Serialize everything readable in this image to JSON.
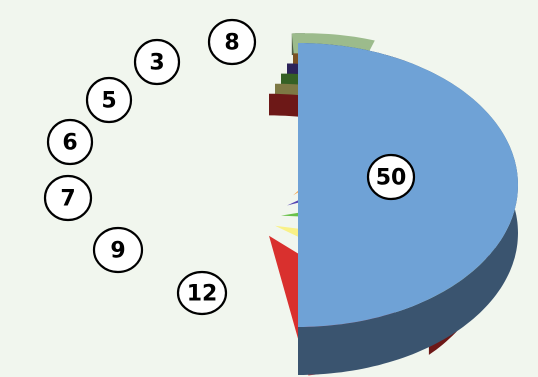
{
  "chart_data": {
    "type": "pie",
    "style": "3d-exploded",
    "title": "",
    "legend": false,
    "values": [
      50,
      12,
      9,
      7,
      6,
      5,
      3,
      8
    ],
    "data_labels": [
      "50",
      "12",
      "9",
      "7",
      "6",
      "5",
      "3",
      "8"
    ],
    "colors": [
      "#6fa2d6",
      "#d9302e",
      "#f9f187",
      "#69c14a",
      "#5746b3",
      "#f6a145",
      "#8f5a5d",
      "#9cbb8c"
    ]
  }
}
